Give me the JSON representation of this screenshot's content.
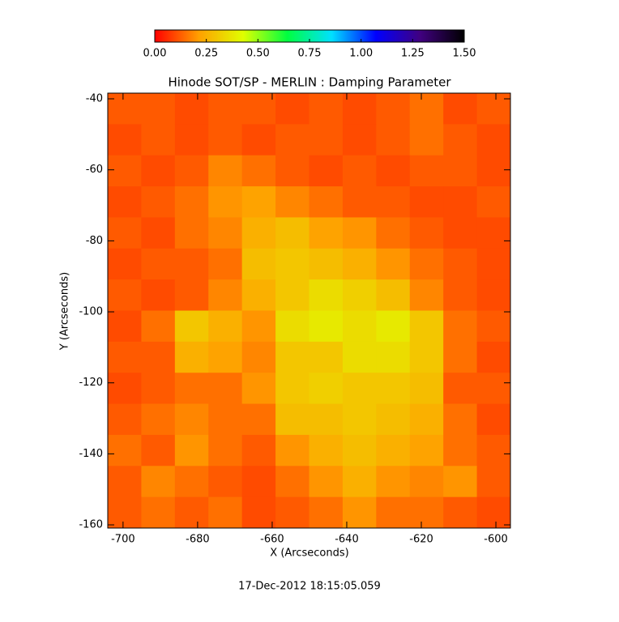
{
  "chart_data": {
    "type": "heatmap",
    "title": "Hinode SOT/SP - MERLIN : Damping Parameter",
    "xlabel": "X (Arcseconds)",
    "ylabel": "Y (Arcseconds)",
    "footer": "17-Dec-2012 18:15:05.059",
    "xlim": [
      -704.1,
      -596.1
    ],
    "ylim": [
      -160.9,
      -38.4
    ],
    "xticks": [
      -700,
      -680,
      -660,
      -640,
      -620,
      -600
    ],
    "yticks": [
      -160,
      -140,
      -120,
      -100,
      -80,
      -60,
      -40
    ],
    "zlim": [
      0,
      1.5
    ],
    "colormap": [
      "#ff0000",
      "#ffa000",
      "#e0ff00",
      "#00ff40",
      "#00e0ff",
      "#0000ff",
      "#400080",
      "#000000"
    ],
    "colorbar_ticks": [
      {
        "value": 0,
        "label": "0.00"
      },
      {
        "value": 0.25,
        "label": "0.25"
      },
      {
        "value": 0.5,
        "label": "0.50"
      },
      {
        "value": 0.75,
        "label": "0.75"
      },
      {
        "value": 1,
        "label": "1.00"
      },
      {
        "value": 1.25,
        "label": "1.25"
      },
      {
        "value": 1.5,
        "label": "1.50"
      }
    ],
    "z": [
      [
        0.12,
        0.12,
        0.1,
        0.12,
        0.12,
        0.1,
        0.12,
        0.1,
        0.12,
        0.15,
        0.1,
        0.12
      ],
      [
        0.1,
        0.12,
        0.1,
        0.12,
        0.1,
        0.12,
        0.12,
        0.1,
        0.12,
        0.15,
        0.12,
        0.1
      ],
      [
        0.12,
        0.1,
        0.12,
        0.18,
        0.15,
        0.12,
        0.1,
        0.12,
        0.1,
        0.12,
        0.12,
        0.1
      ],
      [
        0.1,
        0.12,
        0.15,
        0.2,
        0.22,
        0.18,
        0.15,
        0.12,
        0.12,
        0.1,
        0.1,
        0.12
      ],
      [
        0.12,
        0.1,
        0.15,
        0.18,
        0.25,
        0.28,
        0.22,
        0.2,
        0.15,
        0.12,
        0.1,
        0.1
      ],
      [
        0.1,
        0.12,
        0.12,
        0.15,
        0.28,
        0.3,
        0.28,
        0.25,
        0.2,
        0.15,
        0.12,
        0.1
      ],
      [
        0.12,
        0.1,
        0.12,
        0.18,
        0.25,
        0.3,
        0.35,
        0.32,
        0.28,
        0.18,
        0.12,
        0.1
      ],
      [
        0.1,
        0.15,
        0.3,
        0.25,
        0.2,
        0.35,
        0.38,
        0.35,
        0.38,
        0.3,
        0.15,
        0.12
      ],
      [
        0.12,
        0.12,
        0.25,
        0.22,
        0.18,
        0.3,
        0.3,
        0.35,
        0.35,
        0.3,
        0.15,
        0.1
      ],
      [
        0.1,
        0.12,
        0.15,
        0.15,
        0.2,
        0.3,
        0.32,
        0.3,
        0.3,
        0.28,
        0.12,
        0.12
      ],
      [
        0.12,
        0.15,
        0.18,
        0.15,
        0.15,
        0.28,
        0.28,
        0.3,
        0.28,
        0.25,
        0.15,
        0.1
      ],
      [
        0.15,
        0.12,
        0.2,
        0.15,
        0.12,
        0.2,
        0.25,
        0.28,
        0.25,
        0.22,
        0.15,
        0.12
      ],
      [
        0.12,
        0.18,
        0.15,
        0.12,
        0.1,
        0.15,
        0.2,
        0.25,
        0.2,
        0.18,
        0.2,
        0.12
      ],
      [
        0.12,
        0.15,
        0.12,
        0.15,
        0.1,
        0.12,
        0.15,
        0.2,
        0.15,
        0.15,
        0.12,
        0.1
      ]
    ]
  }
}
